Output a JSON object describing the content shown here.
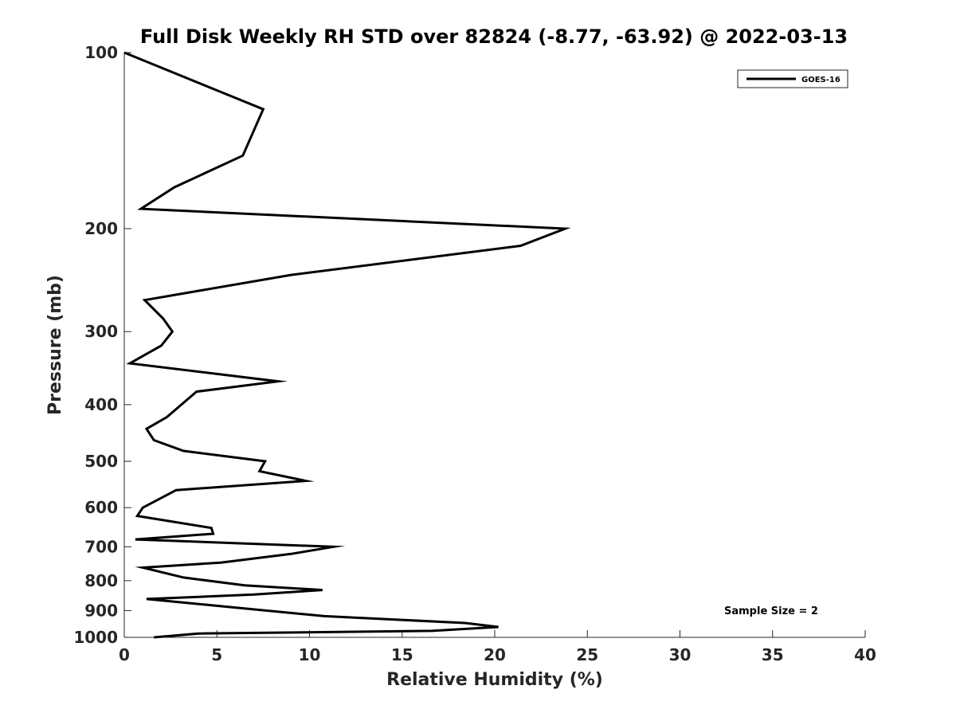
{
  "chart_data": {
    "type": "line",
    "title": "Full Disk Weekly RH STD over 82824 (-8.77, -63.92) @ 2022-03-13",
    "xlabel": "Relative Humidity (%)",
    "ylabel": "Pressure (mb)",
    "xlim": [
      0,
      40
    ],
    "ylim": [
      100,
      1000
    ],
    "y_scale": "log",
    "y_reversed": true,
    "x_ticks": [
      0,
      5,
      10,
      15,
      20,
      25,
      30,
      35,
      40
    ],
    "y_ticks": [
      100,
      200,
      300,
      400,
      500,
      600,
      700,
      800,
      900,
      1000
    ],
    "grid": false,
    "legend_position": "top-right",
    "annotation": "Sample Size = 2",
    "series": [
      {
        "name": "GOES-16",
        "color": "#000000",
        "points": [
          [
            0.0,
            100
          ],
          [
            7.5,
            125
          ],
          [
            6.4,
            150
          ],
          [
            2.7,
            170
          ],
          [
            0.9,
            185
          ],
          [
            23.8,
            200
          ],
          [
            21.4,
            214
          ],
          [
            9.0,
            240
          ],
          [
            1.1,
            265
          ],
          [
            2.1,
            285
          ],
          [
            2.6,
            300
          ],
          [
            2.0,
            317
          ],
          [
            0.3,
            340
          ],
          [
            8.3,
            365
          ],
          [
            3.9,
            380
          ],
          [
            2.3,
            420
          ],
          [
            1.2,
            440
          ],
          [
            1.6,
            460
          ],
          [
            3.2,
            480
          ],
          [
            7.6,
            500
          ],
          [
            7.3,
            520
          ],
          [
            9.8,
            540
          ],
          [
            2.8,
            560
          ],
          [
            1.0,
            600
          ],
          [
            0.7,
            620
          ],
          [
            4.7,
            650
          ],
          [
            4.8,
            665
          ],
          [
            0.6,
            680
          ],
          [
            11.3,
            700
          ],
          [
            9.0,
            720
          ],
          [
            5.2,
            745
          ],
          [
            1.0,
            760
          ],
          [
            3.2,
            790
          ],
          [
            6.5,
            815
          ],
          [
            10.7,
            830
          ],
          [
            7.0,
            845
          ],
          [
            1.2,
            860
          ],
          [
            4.5,
            880
          ],
          [
            10.8,
            920
          ],
          [
            18.4,
            945
          ],
          [
            20.2,
            960
          ],
          [
            16.6,
            975
          ],
          [
            4.0,
            985
          ],
          [
            1.6,
            1000
          ]
        ]
      }
    ]
  }
}
